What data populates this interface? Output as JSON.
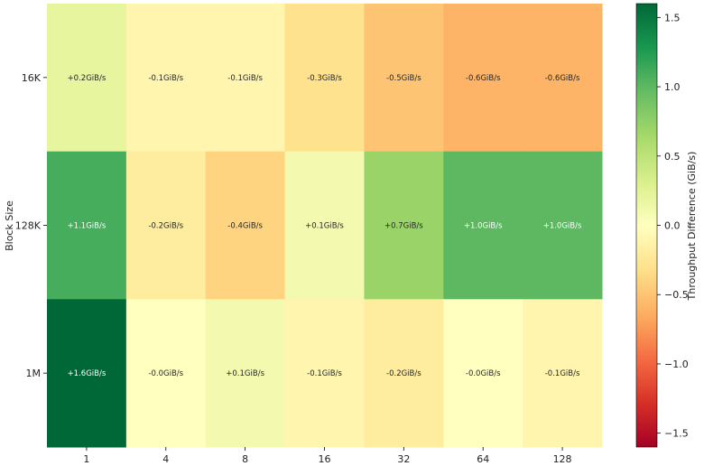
{
  "chart_data": {
    "type": "heatmap",
    "title": "",
    "xlabel": "",
    "ylabel": "Block Size",
    "x_categories": [
      "1",
      "4",
      "8",
      "16",
      "32",
      "64",
      "128"
    ],
    "y_categories": [
      "16K",
      "128K",
      "1M"
    ],
    "values": [
      [
        0.2,
        -0.1,
        -0.1,
        -0.3,
        -0.5,
        -0.6,
        -0.6
      ],
      [
        1.1,
        -0.2,
        -0.4,
        0.1,
        0.7,
        1.0,
        1.0
      ],
      [
        1.6,
        -0.0,
        0.1,
        -0.1,
        -0.2,
        -0.0,
        -0.1
      ]
    ],
    "cell_labels": [
      [
        "+0.2GiB/s",
        "-0.1GiB/s",
        "-0.1GiB/s",
        "-0.3GiB/s",
        "-0.5GiB/s",
        "-0.6GiB/s",
        "-0.6GiB/s"
      ],
      [
        "+1.1GiB/s",
        "-0.2GiB/s",
        "-0.4GiB/s",
        "+0.1GiB/s",
        "+0.7GiB/s",
        "+1.0GiB/s",
        "+1.0GiB/s"
      ],
      [
        "+1.6GiB/s",
        "-0.0GiB/s",
        "+0.1GiB/s",
        "-0.1GiB/s",
        "-0.2GiB/s",
        "-0.0GiB/s",
        "-0.1GiB/s"
      ]
    ],
    "colorbar": {
      "label": "Throughput Difference (GiB/s)",
      "colormap": "RdYlGn",
      "range": [
        -1.6,
        1.6
      ],
      "ticks": [
        -1.5,
        -1.0,
        -0.5,
        0.0,
        0.5,
        1.0,
        1.5
      ],
      "tick_labels": [
        "−1.5",
        "−1.0",
        "−0.5",
        "0.0",
        "0.5",
        "1.0",
        "1.5"
      ]
    },
    "colors": {
      "low": "#a50026",
      "mid": "#ffffbf",
      "high": "#006837",
      "light_text": "#ffffff",
      "dark_text": "#262626"
    }
  }
}
